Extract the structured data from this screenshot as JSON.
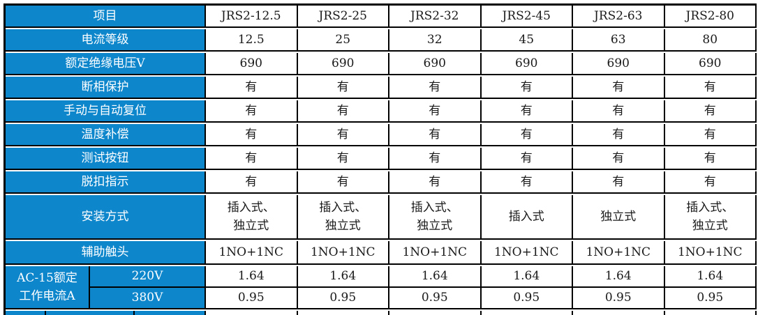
{
  "colors": {
    "header_blue": "#0d86cc",
    "grid_line": "#000000",
    "cell_text": "#1a1a1a"
  },
  "table": {
    "corner_label": "项目",
    "columns": [
      "JRS2-12.5",
      "JRS2-25",
      "JRS2-32",
      "JRS2-45",
      "JRS2-63",
      "JRS2-80"
    ],
    "rows": [
      {
        "label": "电流等级",
        "values": [
          "12.5",
          "25",
          "32",
          "45",
          "63",
          "80"
        ]
      },
      {
        "label": "额定绝缘电压V",
        "values": [
          "690",
          "690",
          "690",
          "690",
          "690",
          "690"
        ]
      },
      {
        "label": "断相保护",
        "values": [
          "有",
          "有",
          "有",
          "有",
          "有",
          "有"
        ]
      },
      {
        "label": "手动与自动复位",
        "values": [
          "有",
          "有",
          "有",
          "有",
          "有",
          "有"
        ]
      },
      {
        "label": "温度补偿",
        "values": [
          "有",
          "有",
          "有",
          "有",
          "有",
          "有"
        ]
      },
      {
        "label": "测试按钮",
        "values": [
          "有",
          "有",
          "有",
          "有",
          "有",
          "有"
        ]
      },
      {
        "label": "脱扣指示",
        "values": [
          "有",
          "有",
          "有",
          "有",
          "有",
          "有"
        ]
      },
      {
        "label": "安装方式",
        "values": [
          "插入式、\n独立式",
          "插入式、\n独立式",
          "插入式、\n独立式",
          "插入式",
          "独立式",
          "插入式、\n独立式"
        ]
      },
      {
        "label": "辅助触头",
        "values": [
          "1NO+1NC",
          "1NO+1NC",
          "1NO+1NC",
          "1NO+1NC",
          "1NO+1NC",
          "1NO+1NC"
        ]
      }
    ],
    "ac15_group": {
      "label_line1": "AC-15额定",
      "label_line2": "工作电流A",
      "subrows": [
        {
          "label": "220V",
          "values": [
            "1.64",
            "1.64",
            "1.64",
            "1.64",
            "1.64",
            "1.64"
          ]
        },
        {
          "label": "380V",
          "values": [
            "0.95",
            "0.95",
            "0.95",
            "0.95",
            "0.95",
            "0.95"
          ]
        }
      ]
    }
  }
}
